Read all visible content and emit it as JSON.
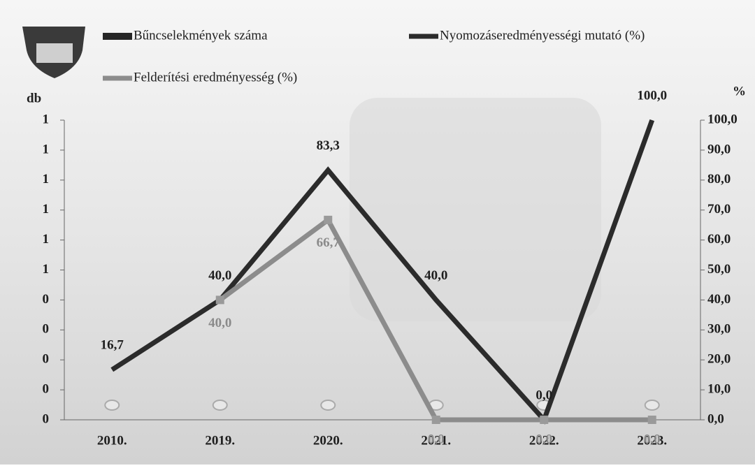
{
  "chart_data": {
    "type": "bar-line",
    "y_label": "db",
    "y2_label": "%",
    "categories": [
      "2010.",
      "2019.",
      "2020.",
      "2021.",
      "2022.",
      "2023."
    ],
    "series": [
      {
        "name": "Bűncselekmények száma",
        "type": "bar",
        "color": "#262626",
        "values": [
          0,
          0,
          0,
          0,
          0,
          0
        ]
      },
      {
        "name": "Nyomozáseredményességi mutató (%)",
        "type": "line",
        "axis": "y2",
        "color": "#2b2b2b",
        "values": [
          16.7,
          40.0,
          83.3,
          40.0,
          0.0,
          100.0
        ],
        "value_labels": [
          "16,7",
          "40,0",
          "83,3",
          "40,0",
          "0,0",
          "100,0"
        ]
      },
      {
        "name": "Felderítési eredményesség (%)",
        "type": "line",
        "axis": "y2",
        "color": "#8c8c8c",
        "values": [
          null,
          40.0,
          66.7,
          0.0,
          0.0,
          0.0
        ],
        "value_labels": [
          null,
          "40,0",
          "66,7",
          "0,0",
          "0,0",
          "0,0"
        ]
      }
    ],
    "ylim": [
      0,
      1
    ],
    "yticks": [
      0,
      {
        "value": 0.1,
        "label": "0"
      },
      {
        "value": 0.2,
        "label": "0"
      },
      {
        "value": 0.3,
        "label": "0"
      },
      {
        "value": 0.4,
        "label": "0"
      },
      {
        "value": 0.5,
        "label": "1"
      },
      {
        "value": 0.6,
        "label": "1"
      },
      {
        "value": 0.7,
        "label": "1"
      },
      {
        "value": 0.8,
        "label": "1"
      },
      {
        "value": 0.9,
        "label": "1"
      },
      1
    ],
    "y2lim": [
      0,
      100
    ],
    "y2ticks": [
      {
        "value": 0,
        "label": "0,0"
      },
      {
        "value": 10,
        "label": "10,0"
      },
      {
        "value": 20,
        "label": "20,0"
      },
      {
        "value": 30,
        "label": "30,0"
      },
      {
        "value": 40,
        "label": "40,0"
      },
      {
        "value": 50,
        "label": "50,0"
      },
      {
        "value": 60,
        "label": "60,0"
      },
      {
        "value": 70,
        "label": "70,0"
      },
      {
        "value": 80,
        "label": "80,0"
      },
      {
        "value": 90,
        "label": "90,0"
      },
      {
        "value": 100,
        "label": "100,0"
      }
    ]
  }
}
